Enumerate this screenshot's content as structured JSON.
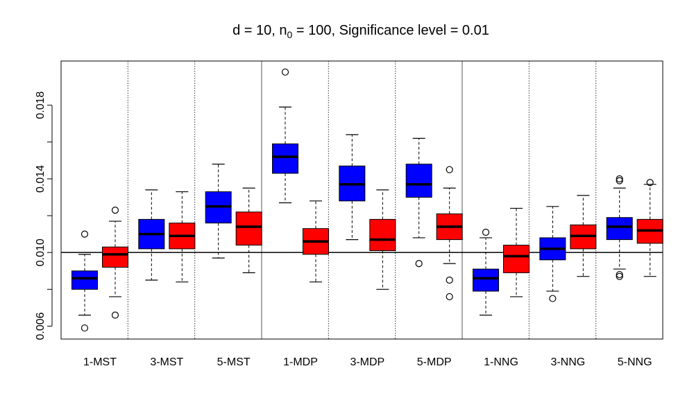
{
  "chart_data": {
    "type": "boxplot",
    "title_main": "d = 10, n",
    "title_sub": "0",
    "title_rest": " = 100, Significance level = 0.01",
    "ylim": [
      0.0053,
      0.0204
    ],
    "yticks": [
      0.006,
      0.01,
      0.014,
      0.018
    ],
    "ytick_labels": [
      "0.006",
      "0.010",
      "0.014",
      "0.018"
    ],
    "reference_line": 0.01,
    "categories": [
      "1-MST",
      "3-MST",
      "5-MST",
      "1-MDP",
      "3-MDP",
      "5-MDP",
      "1-NNG",
      "3-NNG",
      "5-NNG"
    ],
    "major_separators_after": [
      3,
      6
    ],
    "colors": {
      "series_a": "#0000ff",
      "series_b": "#ff0000"
    },
    "boxes": [
      {
        "group": 0,
        "series": "a",
        "wlo": 0.0066,
        "q1": 0.008,
        "med": 0.0086,
        "q3": 0.009,
        "whi": 0.0099,
        "out": [
          0.011,
          0.0059
        ]
      },
      {
        "group": 0,
        "series": "b",
        "wlo": 0.0076,
        "q1": 0.0092,
        "med": 0.0099,
        "q3": 0.0103,
        "whi": 0.0117,
        "out": [
          0.0123,
          0.0066
        ]
      },
      {
        "group": 1,
        "series": "a",
        "wlo": 0.0085,
        "q1": 0.0102,
        "med": 0.011,
        "q3": 0.0118,
        "whi": 0.0134,
        "out": []
      },
      {
        "group": 1,
        "series": "b",
        "wlo": 0.0084,
        "q1": 0.0102,
        "med": 0.0109,
        "q3": 0.0116,
        "whi": 0.0133,
        "out": []
      },
      {
        "group": 2,
        "series": "a",
        "wlo": 0.0097,
        "q1": 0.0116,
        "med": 0.0125,
        "q3": 0.0133,
        "whi": 0.0148,
        "out": []
      },
      {
        "group": 2,
        "series": "b",
        "wlo": 0.0089,
        "q1": 0.0104,
        "med": 0.0114,
        "q3": 0.0122,
        "whi": 0.0135,
        "out": []
      },
      {
        "group": 3,
        "series": "a",
        "wlo": 0.0127,
        "q1": 0.0143,
        "med": 0.0152,
        "q3": 0.0159,
        "whi": 0.0179,
        "out": [
          0.0198
        ]
      },
      {
        "group": 3,
        "series": "b",
        "wlo": 0.0084,
        "q1": 0.0099,
        "med": 0.0106,
        "q3": 0.0113,
        "whi": 0.0128,
        "out": []
      },
      {
        "group": 4,
        "series": "a",
        "wlo": 0.0107,
        "q1": 0.0128,
        "med": 0.0137,
        "q3": 0.0147,
        "whi": 0.0164,
        "out": []
      },
      {
        "group": 4,
        "series": "b",
        "wlo": 0.008,
        "q1": 0.0101,
        "med": 0.0107,
        "q3": 0.0118,
        "whi": 0.0134,
        "out": []
      },
      {
        "group": 5,
        "series": "a",
        "wlo": 0.0108,
        "q1": 0.013,
        "med": 0.0137,
        "q3": 0.0148,
        "whi": 0.0162,
        "out": [
          0.0094
        ]
      },
      {
        "group": 5,
        "series": "b",
        "wlo": 0.0094,
        "q1": 0.0107,
        "med": 0.0114,
        "q3": 0.0121,
        "whi": 0.0135,
        "out": [
          0.0145,
          0.0085,
          0.0076
        ]
      },
      {
        "group": 6,
        "series": "a",
        "wlo": 0.0066,
        "q1": 0.0079,
        "med": 0.0086,
        "q3": 0.0091,
        "whi": 0.0108,
        "out": [
          0.0111
        ]
      },
      {
        "group": 6,
        "series": "b",
        "wlo": 0.0076,
        "q1": 0.0089,
        "med": 0.0098,
        "q3": 0.0104,
        "whi": 0.0124,
        "out": []
      },
      {
        "group": 7,
        "series": "a",
        "wlo": 0.0079,
        "q1": 0.0096,
        "med": 0.0102,
        "q3": 0.0108,
        "whi": 0.0125,
        "out": [
          0.0075
        ]
      },
      {
        "group": 7,
        "series": "b",
        "wlo": 0.0087,
        "q1": 0.0102,
        "med": 0.0109,
        "q3": 0.0115,
        "whi": 0.0131,
        "out": []
      },
      {
        "group": 8,
        "series": "a",
        "wlo": 0.0091,
        "q1": 0.0107,
        "med": 0.0114,
        "q3": 0.0119,
        "whi": 0.0135,
        "out": [
          0.014,
          0.0139,
          0.0088,
          0.0087
        ]
      },
      {
        "group": 8,
        "series": "b",
        "wlo": 0.0087,
        "q1": 0.0105,
        "med": 0.0112,
        "q3": 0.0118,
        "whi": 0.0137,
        "out": [
          0.0138
        ]
      }
    ]
  }
}
